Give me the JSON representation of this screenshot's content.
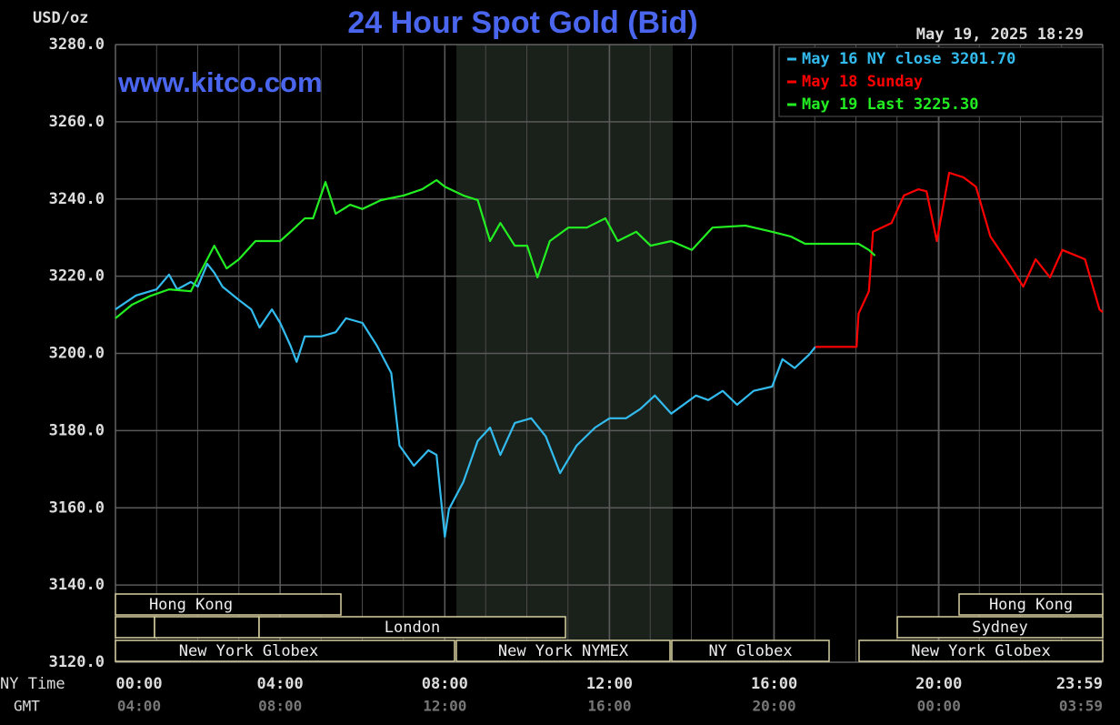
{
  "chart_data": {
    "type": "line",
    "title": "24 Hour Spot Gold (Bid)",
    "y_label": "USD/oz",
    "watermark": "www.kitco.com",
    "timestamp": "May 19, 2025 18:29",
    "x_label": "NY Time",
    "x2_label": "GMT",
    "xlim": [
      0,
      23.98
    ],
    "xticks": [
      {
        "value": 0,
        "label": "00:00"
      },
      {
        "value": 4,
        "label": "04:00"
      },
      {
        "value": 8,
        "label": "08:00"
      },
      {
        "value": 12,
        "label": "12:00"
      },
      {
        "value": 16,
        "label": "16:00"
      },
      {
        "value": 20,
        "label": "20:00"
      },
      {
        "value": 23.98,
        "label": "23:59"
      }
    ],
    "x2tick_labels": [
      "04:00",
      "08:00",
      "12:00",
      "16:00",
      "20:00",
      "00:00",
      "03:59"
    ],
    "ylim": [
      3120,
      3280
    ],
    "yticks": [
      {
        "value": 3120,
        "label": "3120.0"
      },
      {
        "value": 3140,
        "label": "3140.0"
      },
      {
        "value": 3160,
        "label": "3160.0"
      },
      {
        "value": 3180,
        "label": "3180.0"
      },
      {
        "value": 3200,
        "label": "3200.0"
      },
      {
        "value": 3220,
        "label": "3220.0"
      },
      {
        "value": 3240,
        "label": "3240.0"
      },
      {
        "value": 3260,
        "label": "3260.0"
      },
      {
        "value": 3280,
        "label": "3280.0"
      }
    ],
    "grid": true,
    "legend": "top-right",
    "series": [
      {
        "name": "May 16 NY close 3201.70",
        "color": "#33bbee",
        "x": [
          0,
          0.5,
          1,
          1.3,
          1.5,
          1.83,
          2,
          2.23,
          2.4,
          2.6,
          3,
          3.3,
          3.5,
          3.8,
          4,
          4.25,
          4.4,
          4.6,
          5,
          5.35,
          5.6,
          6,
          6.35,
          6.7,
          6.9,
          7.25,
          7.6,
          7.8,
          8,
          8.1,
          8.45,
          8.8,
          9.1,
          9.35,
          9.7,
          10.1,
          10.45,
          10.8,
          11.2,
          11.65,
          12,
          12.4,
          12.75,
          13.1,
          13.5,
          14.1,
          14.4,
          14.75,
          15.1,
          15.5,
          15.95,
          16.2,
          16.5,
          16.85,
          17
        ],
        "values": [
          3211.4,
          3215,
          3216.6,
          3220.4,
          3216.6,
          3218.5,
          3217.3,
          3223.2,
          3220.9,
          3217.3,
          3213.8,
          3211.4,
          3206.7,
          3211.4,
          3207.9,
          3202,
          3197.8,
          3204.4,
          3204.4,
          3205.5,
          3209.1,
          3207.9,
          3202,
          3194.9,
          3176.1,
          3170.9,
          3174.9,
          3173.7,
          3152.5,
          3159.6,
          3166.7,
          3177.3,
          3180.8,
          3173.7,
          3182,
          3183.2,
          3178.5,
          3169,
          3176.1,
          3180.8,
          3183.2,
          3183.2,
          3185.6,
          3189.1,
          3184.4,
          3189.1,
          3187.9,
          3190.3,
          3186.7,
          3190.3,
          3191.4,
          3198.5,
          3196.2,
          3199.7,
          3201.7
        ]
      },
      {
        "name": "May 18 Sunday",
        "color": "#ff0000",
        "x": [
          17,
          18,
          18.05,
          18.3,
          18.4,
          18.85,
          19.15,
          19.5,
          19.7,
          19.95,
          20.25,
          20.6,
          20.9,
          21.25,
          21.7,
          22.05,
          22.35,
          22.7,
          23,
          23.55,
          23.9,
          23.98
        ],
        "values": [
          3201.7,
          3201.7,
          3210.3,
          3216.1,
          3231.5,
          3233.8,
          3240.9,
          3242.5,
          3242,
          3229.1,
          3246.8,
          3245.6,
          3243.2,
          3230.3,
          3223.2,
          3217.3,
          3224.4,
          3219.7,
          3226.8,
          3224.4,
          3211.4,
          3210.7
        ]
      },
      {
        "name": "May 19 Last 3225.30",
        "color": "#22ee22",
        "x": [
          0,
          0.4,
          0.85,
          1.3,
          1.83,
          2,
          2.4,
          2.7,
          3,
          3.4,
          4,
          4.25,
          4.6,
          4.8,
          5.1,
          5.35,
          5.7,
          6,
          6.45,
          7,
          7.45,
          7.8,
          8,
          8.45,
          8.8,
          9.1,
          9.35,
          9.7,
          10,
          10.25,
          10.55,
          11,
          11.45,
          11.9,
          12.2,
          12.65,
          13,
          13.5,
          14,
          14.5,
          15.3,
          15.95,
          16.4,
          16.75,
          17.5,
          18.05,
          18.3,
          18.45
        ],
        "values": [
          3209.1,
          3212.6,
          3214.9,
          3216.6,
          3216.1,
          3219.7,
          3227.9,
          3222,
          3224.4,
          3229.1,
          3229.1,
          3231.5,
          3235,
          3235,
          3244.4,
          3236.2,
          3238.5,
          3237.4,
          3239.7,
          3240.9,
          3242.5,
          3244.9,
          3243.2,
          3240.9,
          3239.7,
          3229.1,
          3233.8,
          3227.9,
          3227.9,
          3219.7,
          3229.1,
          3232.6,
          3232.6,
          3235,
          3229.1,
          3231.5,
          3227.9,
          3229.1,
          3226.8,
          3232.6,
          3233.1,
          3231.5,
          3230.3,
          3228.4,
          3228.4,
          3228.4,
          3226.8,
          3225.3
        ]
      }
    ],
    "sessions": [
      "Hong Kong",
      "Hong Kong",
      "London",
      "Sydney",
      "New York Globex",
      "New York NYMEX",
      "NY Globex",
      "New York Globex"
    ]
  }
}
